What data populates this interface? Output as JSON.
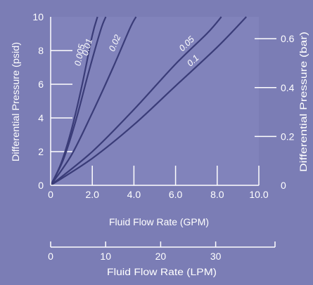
{
  "colors": {
    "background": "#7b7db5",
    "plot_area": "#8183bb",
    "axis": "#ffffff",
    "curve": "#3a3c78",
    "text": "#ffffff"
  },
  "chart_data": {
    "type": "line",
    "title": "",
    "xlabel": "Fluid Flow Rate (GPM)",
    "ylabel": "Differential Pressure (psid)",
    "y2label": "Differential Pressure (bar)",
    "x2label": "Fluid Flow Rate (LPM)",
    "xlim": [
      0,
      10
    ],
    "ylim": [
      0,
      10
    ],
    "y2lim": [
      0,
      0.6895
    ],
    "x2lim": [
      0,
      37.85
    ],
    "x_ticks": [
      "0",
      "2.0",
      "4.0",
      "6.0",
      "8.0",
      "10.0"
    ],
    "y_ticks": [
      "0",
      "2",
      "4",
      "6",
      "8",
      "10"
    ],
    "y2_ticks": [
      "0",
      "0.2",
      "0.4",
      "0.6"
    ],
    "x2_ticks": [
      "0",
      "10",
      "20",
      "30"
    ],
    "grid": false,
    "series": [
      {
        "name": "0.005",
        "x": [
          0,
          0.5,
          1.0,
          1.5,
          2.0,
          2.25
        ],
        "y": [
          0,
          1.3,
          3.3,
          5.9,
          8.9,
          10
        ]
      },
      {
        "name": "0.01",
        "x": [
          0,
          0.6,
          1.2,
          1.8,
          2.4,
          2.65
        ],
        "y": [
          0,
          1.5,
          3.8,
          6.6,
          9.2,
          10
        ]
      },
      {
        "name": "0.02",
        "x": [
          0,
          1.0,
          2.0,
          3.0,
          3.8,
          4.1
        ],
        "y": [
          0,
          1.8,
          4.3,
          7.0,
          9.3,
          10
        ]
      },
      {
        "name": "0.05",
        "x": [
          0,
          2.0,
          4.0,
          6.0,
          7.5,
          8.2
        ],
        "y": [
          0,
          2.0,
          4.5,
          7.2,
          9.0,
          10
        ]
      },
      {
        "name": "0.1",
        "x": [
          0,
          2.0,
          4.0,
          6.0,
          8.0,
          9.4
        ],
        "y": [
          0,
          1.6,
          3.6,
          5.9,
          8.2,
          10
        ]
      }
    ]
  }
}
